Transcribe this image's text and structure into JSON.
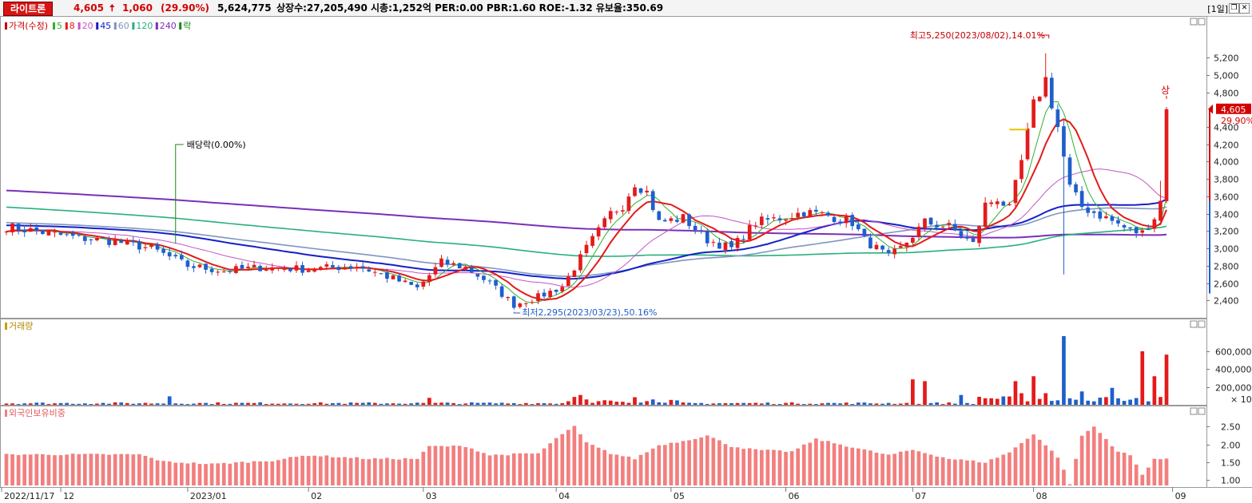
{
  "header": {
    "stock_name": "라이트론",
    "price": "4,605",
    "arrow": "🠅",
    "change": "1,060",
    "change_pct": "(29.90%)",
    "volume": "5,624,775",
    "info": "상장수:27,205,490 시총:1,252억 PER:0.00 PBR:1.60 ROE:-1.32 유보율:350.69",
    "period": "[1일]",
    "restore_icon": "window-restore-icon",
    "close_icon": "close-icon"
  },
  "colors": {
    "up": "#e31b1b",
    "down": "#1f5fcc",
    "ma5": "#2fb12f",
    "ma8": "#e31b1b",
    "ma20": "#c455c4",
    "ma45": "#1420c8",
    "ma60": "#7f95c2",
    "ma120": "#27b07c",
    "ma240": "#7b2fb8",
    "ex_div": "#1a8a1a",
    "foreign_bar": "#f27f7f"
  },
  "price_panel": {
    "legend": [
      {
        "label": "가격(수정)",
        "color": "#c40000"
      },
      {
        "label": "5",
        "color": "#2fb12f"
      },
      {
        "label": "8",
        "color": "#e31b1b"
      },
      {
        "label": "20",
        "color": "#c455c4"
      },
      {
        "label": "45",
        "color": "#1420c8"
      },
      {
        "label": "60",
        "color": "#7f95c2"
      },
      {
        "label": "120",
        "color": "#27b07c"
      },
      {
        "label": "240",
        "color": "#7b2fb8"
      },
      {
        "label": "락",
        "color": "#1a8a1a"
      }
    ],
    "high_annotation": "최고5,250(2023/08/02),14.01%",
    "low_annotation": "최저2,295(2023/03/23),50.16%",
    "ex_dividend_label": "배당락(0.00%)",
    "upper_limit_label": "상",
    "last_price_label": "4,605",
    "last_pct_label": "29.90%",
    "y_ticks": [
      "2,400",
      "2,600",
      "2,800",
      "3,000",
      "3,200",
      "3,400",
      "3,600",
      "3,800",
      "4,000",
      "4,200",
      "4,400",
      "4,800",
      "5,000",
      "5,200"
    ],
    "ylim": [
      2200,
      5450
    ]
  },
  "volume_panel": {
    "label": "거래량",
    "y_ticks": [
      "200,000",
      "400,000",
      "600,000"
    ],
    "unit": "× 10",
    "ylim": [
      0,
      850000
    ]
  },
  "foreign_panel": {
    "label": "외국인보유비중",
    "y_ticks": [
      "1.00",
      "1.50",
      "2.00",
      "2.50"
    ],
    "ylim": [
      0.85,
      2.8
    ]
  },
  "x_axis": {
    "labels": [
      {
        "text": "2022/11/17",
        "i": 0
      },
      {
        "text": "12",
        "i": 9
      },
      {
        "text": "2023/01",
        "i": 30
      },
      {
        "text": "02",
        "i": 50
      },
      {
        "text": "03",
        "i": 69
      },
      {
        "text": "04",
        "i": 91
      },
      {
        "text": "05",
        "i": 110
      },
      {
        "text": "06",
        "i": 129
      },
      {
        "text": "07",
        "i": 150
      },
      {
        "text": "08",
        "i": 170
      },
      {
        "text": "09",
        "i": 193
      }
    ]
  },
  "chart_data": {
    "type": "candlestick",
    "keypoints": [
      [
        0,
        3250
      ],
      [
        12,
        3120
      ],
      [
        18,
        3080
      ],
      [
        24,
        3000
      ],
      [
        30,
        2800
      ],
      [
        36,
        2740
      ],
      [
        42,
        2780
      ],
      [
        50,
        2760
      ],
      [
        58,
        2800
      ],
      [
        64,
        2650
      ],
      [
        68,
        2540
      ],
      [
        72,
        2840
      ],
      [
        76,
        2780
      ],
      [
        80,
        2600
      ],
      [
        84,
        2350
      ],
      [
        88,
        2440
      ],
      [
        92,
        2560
      ],
      [
        96,
        3000
      ],
      [
        100,
        3400
      ],
      [
        102,
        3500
      ],
      [
        104,
        3760
      ],
      [
        106,
        3650
      ],
      [
        108,
        3300
      ],
      [
        112,
        3350
      ],
      [
        116,
        3100
      ],
      [
        120,
        3000
      ],
      [
        124,
        3300
      ],
      [
        128,
        3350
      ],
      [
        132,
        3420
      ],
      [
        136,
        3380
      ],
      [
        140,
        3300
      ],
      [
        142,
        3100
      ],
      [
        146,
        2900
      ],
      [
        148,
        3000
      ],
      [
        152,
        3300
      ],
      [
        156,
        3250
      ],
      [
        160,
        3050
      ],
      [
        162,
        3500
      ],
      [
        164,
        3580
      ],
      [
        166,
        3450
      ],
      [
        168,
        4000
      ],
      [
        170,
        4650
      ],
      [
        172,
        4950
      ],
      [
        174,
        4400
      ],
      [
        176,
        3700
      ],
      [
        178,
        3480
      ],
      [
        182,
        3350
      ],
      [
        184,
        3280
      ],
      [
        186,
        3200
      ],
      [
        188,
        3180
      ],
      [
        190,
        3360
      ],
      [
        191,
        3545
      ],
      [
        192,
        4605
      ]
    ],
    "volume_base": 20000,
    "volume_spikes": [
      {
        "i": 27,
        "value": 95000
      },
      {
        "i": 70,
        "value": 78000
      },
      {
        "i": 94,
        "value": 88000
      },
      {
        "i": 95,
        "value": 110000
      },
      {
        "i": 96,
        "value": 60000
      },
      {
        "i": 104,
        "value": 85000
      },
      {
        "i": 107,
        "value": 60000
      },
      {
        "i": 150,
        "value": 285000
      },
      {
        "i": 152,
        "value": 265000
      },
      {
        "i": 158,
        "value": 110000
      },
      {
        "i": 161,
        "value": 90000
      },
      {
        "i": 167,
        "value": 265000
      },
      {
        "i": 168,
        "value": 130000
      },
      {
        "i": 170,
        "value": 320000
      },
      {
        "i": 172,
        "value": 130000
      },
      {
        "i": 175,
        "value": 770000
      },
      {
        "i": 178,
        "value": 150000
      },
      {
        "i": 183,
        "value": 190000
      },
      {
        "i": 188,
        "value": 600000
      },
      {
        "i": 190,
        "value": 320000
      },
      {
        "i": 192,
        "value": 562477
      }
    ],
    "foreign_keypoints": [
      [
        0,
        1.72
      ],
      [
        22,
        1.72
      ],
      [
        26,
        1.52
      ],
      [
        34,
        1.45
      ],
      [
        44,
        1.55
      ],
      [
        50,
        1.7
      ],
      [
        60,
        1.6
      ],
      [
        68,
        1.6
      ],
      [
        70,
        1.95
      ],
      [
        76,
        1.95
      ],
      [
        80,
        1.7
      ],
      [
        88,
        1.75
      ],
      [
        92,
        2.3
      ],
      [
        94,
        2.5
      ],
      [
        96,
        2.05
      ],
      [
        100,
        1.75
      ],
      [
        104,
        1.6
      ],
      [
        108,
        1.98
      ],
      [
        112,
        2.1
      ],
      [
        116,
        2.25
      ],
      [
        120,
        1.95
      ],
      [
        124,
        1.85
      ],
      [
        130,
        1.8
      ],
      [
        134,
        2.15
      ],
      [
        138,
        2.0
      ],
      [
        142,
        1.85
      ],
      [
        146,
        1.7
      ],
      [
        150,
        1.85
      ],
      [
        156,
        1.6
      ],
      [
        162,
        1.5
      ],
      [
        166,
        1.78
      ],
      [
        170,
        2.3
      ],
      [
        174,
        1.65
      ],
      [
        176,
        0.9
      ],
      [
        178,
        2.25
      ],
      [
        180,
        2.5
      ],
      [
        184,
        1.8
      ],
      [
        186,
        1.7
      ],
      [
        188,
        1.15
      ],
      [
        190,
        1.6
      ],
      [
        192,
        1.58
      ]
    ]
  }
}
